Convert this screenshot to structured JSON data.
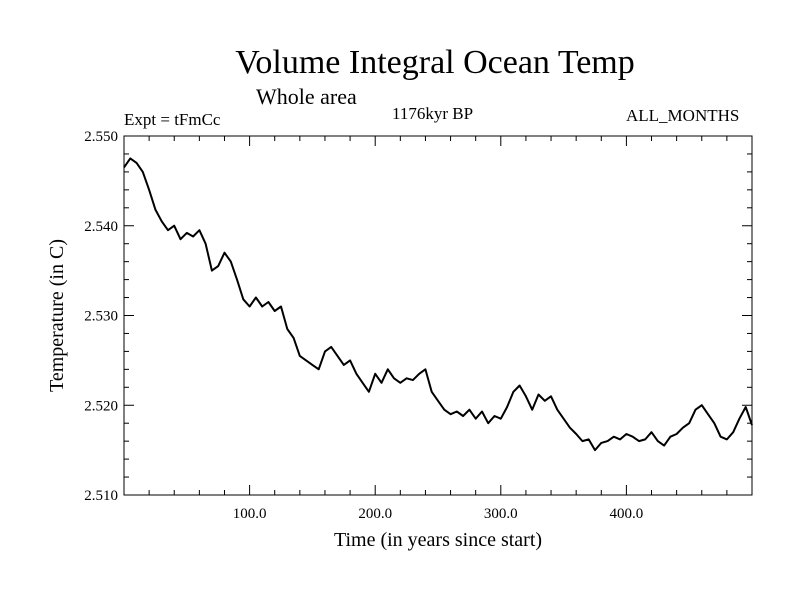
{
  "chart_data": {
    "type": "line",
    "title": "Volume Integral Ocean Temp",
    "subtitle": "Whole area",
    "experiment_label": "Expt = tFmCc",
    "period_label": "1176kyr BP",
    "months_label": "ALL_MONTHS",
    "xlabel": "Time (in years since start)",
    "ylabel": "Temperature (in C)",
    "xlim": [
      0,
      500
    ],
    "ylim": [
      2.51,
      2.55
    ],
    "x_ticks": [
      100,
      200,
      300,
      400
    ],
    "x_tick_labels": [
      "100.0",
      "200.0",
      "300.0",
      "400.0"
    ],
    "y_ticks": [
      2.51,
      2.52,
      2.53,
      2.54,
      2.55
    ],
    "y_tick_labels": [
      "2.510",
      "2.520",
      "2.530",
      "2.540",
      "2.550"
    ],
    "grid": false,
    "series": [
      {
        "name": "Volume integral ocean temperature",
        "color": "#000000",
        "x": [
          0,
          5,
          10,
          15,
          20,
          25,
          30,
          35,
          40,
          45,
          50,
          55,
          60,
          65,
          70,
          75,
          80,
          85,
          90,
          95,
          100,
          105,
          110,
          115,
          120,
          125,
          130,
          135,
          140,
          145,
          150,
          155,
          160,
          165,
          170,
          175,
          180,
          185,
          190,
          195,
          200,
          205,
          210,
          215,
          220,
          225,
          230,
          235,
          240,
          245,
          250,
          255,
          260,
          265,
          270,
          275,
          280,
          285,
          290,
          295,
          300,
          305,
          310,
          315,
          320,
          325,
          330,
          335,
          340,
          345,
          350,
          355,
          360,
          365,
          370,
          375,
          380,
          385,
          390,
          395,
          400,
          405,
          410,
          415,
          420,
          425,
          430,
          435,
          440,
          445,
          450,
          455,
          460,
          465,
          470,
          475,
          480,
          485,
          490,
          495,
          500
        ],
        "y": [
          2.5465,
          2.5475,
          2.547,
          2.546,
          2.544,
          2.5418,
          2.5405,
          2.5395,
          2.54,
          2.5385,
          2.5392,
          2.5388,
          2.5395,
          2.538,
          2.535,
          2.5355,
          2.537,
          2.536,
          2.534,
          2.5318,
          2.531,
          2.532,
          2.531,
          2.5315,
          2.5305,
          2.531,
          2.5285,
          2.5275,
          2.5255,
          2.525,
          2.5245,
          2.524,
          2.526,
          2.5265,
          2.5255,
          2.5245,
          2.525,
          2.5235,
          2.5225,
          2.5215,
          2.5235,
          2.5225,
          2.524,
          2.523,
          2.5225,
          2.523,
          2.5228,
          2.5235,
          2.524,
          2.5215,
          2.5205,
          2.5195,
          2.519,
          2.5193,
          2.5188,
          2.5195,
          2.5185,
          2.5193,
          2.518,
          2.5188,
          2.5185,
          2.5198,
          2.5215,
          2.5222,
          2.521,
          2.5195,
          2.5212,
          2.5205,
          2.521,
          2.5195,
          2.5185,
          2.5175,
          2.5168,
          2.516,
          2.5162,
          2.515,
          2.5158,
          2.516,
          2.5165,
          2.5162,
          2.5168,
          2.5165,
          2.516,
          2.5162,
          2.517,
          2.516,
          2.5155,
          2.5165,
          2.5168,
          2.5175,
          2.518,
          2.5195,
          2.52,
          2.519,
          2.518,
          2.5165,
          2.5162,
          2.517,
          2.5185,
          2.5198,
          2.5178
        ]
      }
    ]
  }
}
